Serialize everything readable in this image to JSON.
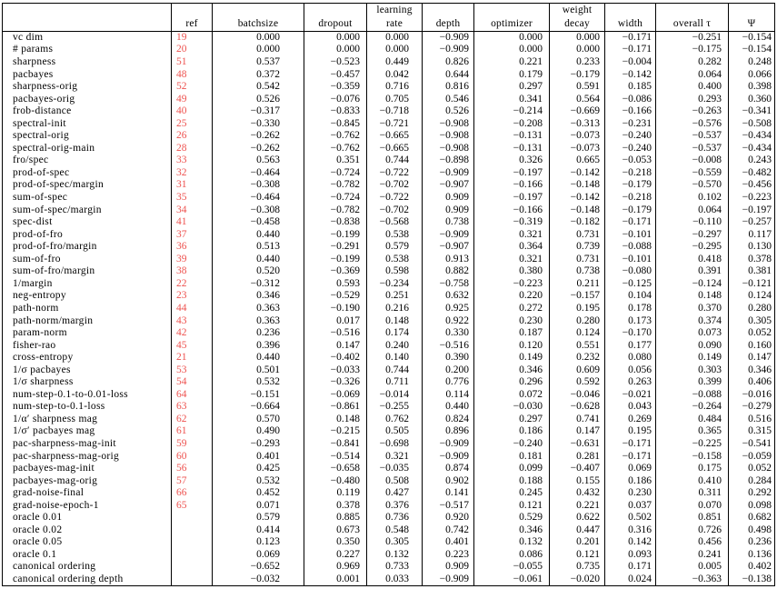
{
  "colors": {
    "ref_link": "#ee5350"
  },
  "table": {
    "header_top": [
      "",
      "",
      "",
      "",
      "learning",
      "",
      "",
      "weight",
      "",
      "",
      ""
    ],
    "header_bottom": [
      "",
      "ref",
      "batchsize",
      "dropout",
      "rate",
      "depth",
      "optimizer",
      "decay",
      "width",
      "overall τ",
      "Ψ"
    ],
    "rows": [
      {
        "label": "vc dim",
        "ref": "19",
        "values": [
          "0.000",
          "0.000",
          "0.000",
          "−0.909",
          "0.000",
          "0.000",
          "−0.171",
          "−0.251",
          "−0.154"
        ]
      },
      {
        "label": "# params",
        "ref": "20",
        "values": [
          "0.000",
          "0.000",
          "0.000",
          "−0.909",
          "0.000",
          "0.000",
          "−0.171",
          "−0.175",
          "−0.154"
        ]
      },
      {
        "label": "sharpness",
        "ref": "51",
        "values": [
          "0.537",
          "−0.523",
          "0.449",
          "0.826",
          "0.221",
          "0.233",
          "−0.004",
          "0.282",
          "0.248"
        ]
      },
      {
        "label": "pacbayes",
        "ref": "48",
        "values": [
          "0.372",
          "−0.457",
          "0.042",
          "0.644",
          "0.179",
          "−0.179",
          "−0.142",
          "0.064",
          "0.066"
        ]
      },
      {
        "label": "sharpness-orig",
        "ref": "52",
        "values": [
          "0.542",
          "−0.359",
          "0.716",
          "0.816",
          "0.297",
          "0.591",
          "0.185",
          "0.400",
          "0.398"
        ]
      },
      {
        "label": "pacbayes-orig",
        "ref": "49",
        "values": [
          "0.526",
          "−0.076",
          "0.705",
          "0.546",
          "0.341",
          "0.564",
          "−0.086",
          "0.293",
          "0.360"
        ]
      },
      {
        "label": "frob-distance",
        "ref": "40",
        "values": [
          "−0.317",
          "−0.833",
          "−0.718",
          "0.526",
          "−0.214",
          "−0.669",
          "−0.166",
          "−0.263",
          "−0.341"
        ]
      },
      {
        "label": "spectral-init",
        "ref": "25",
        "values": [
          "−0.330",
          "−0.845",
          "−0.721",
          "−0.908",
          "−0.208",
          "−0.313",
          "−0.231",
          "−0.576",
          "−0.508"
        ]
      },
      {
        "label": "spectral-orig",
        "ref": "26",
        "values": [
          "−0.262",
          "−0.762",
          "−0.665",
          "−0.908",
          "−0.131",
          "−0.073",
          "−0.240",
          "−0.537",
          "−0.434"
        ]
      },
      {
        "label": "spectral-orig-main",
        "ref": "28",
        "values": [
          "−0.262",
          "−0.762",
          "−0.665",
          "−0.908",
          "−0.131",
          "−0.073",
          "−0.240",
          "−0.537",
          "−0.434"
        ]
      },
      {
        "label": "fro/spec",
        "ref": "33",
        "values": [
          "0.563",
          "0.351",
          "0.744",
          "−0.898",
          "0.326",
          "0.665",
          "−0.053",
          "−0.008",
          "0.243"
        ]
      },
      {
        "label": "prod-of-spec",
        "ref": "32",
        "values": [
          "−0.464",
          "−0.724",
          "−0.722",
          "−0.909",
          "−0.197",
          "−0.142",
          "−0.218",
          "−0.559",
          "−0.482"
        ]
      },
      {
        "label": "prod-of-spec/margin",
        "ref": "31",
        "values": [
          "−0.308",
          "−0.782",
          "−0.702",
          "−0.907",
          "−0.166",
          "−0.148",
          "−0.179",
          "−0.570",
          "−0.456"
        ]
      },
      {
        "label": "sum-of-spec",
        "ref": "35",
        "values": [
          "−0.464",
          "−0.724",
          "−0.722",
          "0.909",
          "−0.197",
          "−0.142",
          "−0.218",
          "0.102",
          "−0.223"
        ]
      },
      {
        "label": "sum-of-spec/margin",
        "ref": "34",
        "values": [
          "−0.308",
          "−0.782",
          "−0.702",
          "0.909",
          "−0.166",
          "−0.148",
          "−0.179",
          "0.064",
          "−0.197"
        ]
      },
      {
        "label": "spec-dist",
        "ref": "41",
        "values": [
          "−0.458",
          "−0.838",
          "−0.568",
          "0.738",
          "−0.319",
          "−0.182",
          "−0.171",
          "−0.110",
          "−0.257"
        ]
      },
      {
        "label": "prod-of-fro",
        "ref": "37",
        "values": [
          "0.440",
          "−0.199",
          "0.538",
          "−0.909",
          "0.321",
          "0.731",
          "−0.101",
          "−0.297",
          "0.117"
        ]
      },
      {
        "label": "prod-of-fro/margin",
        "ref": "36",
        "values": [
          "0.513",
          "−0.291",
          "0.579",
          "−0.907",
          "0.364",
          "0.739",
          "−0.088",
          "−0.295",
          "0.130"
        ]
      },
      {
        "label": "sum-of-fro",
        "ref": "39",
        "values": [
          "0.440",
          "−0.199",
          "0.538",
          "0.913",
          "0.321",
          "0.731",
          "−0.101",
          "0.418",
          "0.378"
        ]
      },
      {
        "label": "sum-of-fro/margin",
        "ref": "38",
        "values": [
          "0.520",
          "−0.369",
          "0.598",
          "0.882",
          "0.380",
          "0.738",
          "−0.080",
          "0.391",
          "0.381"
        ]
      },
      {
        "label": "1/margin",
        "ref": "22",
        "values": [
          "−0.312",
          "0.593",
          "−0.234",
          "−0.758",
          "−0.223",
          "0.211",
          "−0.125",
          "−0.124",
          "−0.121"
        ]
      },
      {
        "label": "neg-entropy",
        "ref": "23",
        "values": [
          "0.346",
          "−0.529",
          "0.251",
          "0.632",
          "0.220",
          "−0.157",
          "0.104",
          "0.148",
          "0.124"
        ]
      },
      {
        "label": "path-norm",
        "ref": "44",
        "values": [
          "0.363",
          "−0.190",
          "0.216",
          "0.925",
          "0.272",
          "0.195",
          "0.178",
          "0.370",
          "0.280"
        ]
      },
      {
        "label": "path-norm/margin",
        "ref": "43",
        "values": [
          "0.363",
          "0.017",
          "0.148",
          "0.922",
          "0.230",
          "0.280",
          "0.173",
          "0.374",
          "0.305"
        ]
      },
      {
        "label": "param-norm",
        "ref": "42",
        "values": [
          "0.236",
          "−0.516",
          "0.174",
          "0.330",
          "0.187",
          "0.124",
          "−0.170",
          "0.073",
          "0.052"
        ]
      },
      {
        "label": "fisher-rao",
        "ref": "45",
        "values": [
          "0.396",
          "0.147",
          "0.240",
          "−0.516",
          "0.120",
          "0.551",
          "0.177",
          "0.090",
          "0.160"
        ]
      },
      {
        "label": "cross-entropy",
        "ref": "21",
        "values": [
          "0.440",
          "−0.402",
          "0.140",
          "0.390",
          "0.149",
          "0.232",
          "0.080",
          "0.149",
          "0.147"
        ]
      },
      {
        "label": "1/σ pacbayes",
        "ref": "53",
        "values": [
          "0.501",
          "−0.033",
          "0.744",
          "0.200",
          "0.346",
          "0.609",
          "0.056",
          "0.303",
          "0.346"
        ]
      },
      {
        "label": "1/σ sharpness",
        "ref": "54",
        "values": [
          "0.532",
          "−0.326",
          "0.711",
          "0.776",
          "0.296",
          "0.592",
          "0.263",
          "0.399",
          "0.406"
        ]
      },
      {
        "label": "num-step-0.1-to-0.01-loss",
        "ref": "64",
        "values": [
          "−0.151",
          "−0.069",
          "−0.014",
          "0.114",
          "0.072",
          "−0.046",
          "−0.021",
          "−0.088",
          "−0.016"
        ]
      },
      {
        "label": "num-step-to-0.1-loss",
        "ref": "63",
        "values": [
          "−0.664",
          "−0.861",
          "−0.255",
          "0.440",
          "−0.030",
          "−0.628",
          "0.043",
          "−0.264",
          "−0.279"
        ]
      },
      {
        "label": "1/α′ sharpness mag",
        "ref": "62",
        "values": [
          "0.570",
          "0.148",
          "0.762",
          "0.824",
          "0.297",
          "0.741",
          "0.269",
          "0.484",
          "0.516"
        ]
      },
      {
        "label": "1/σ′ pacbayes mag",
        "ref": "61",
        "values": [
          "0.490",
          "−0.215",
          "0.505",
          "0.896",
          "0.186",
          "0.147",
          "0.195",
          "0.365",
          "0.315"
        ]
      },
      {
        "label": "pac-sharpness-mag-init",
        "ref": "59",
        "values": [
          "−0.293",
          "−0.841",
          "−0.698",
          "−0.909",
          "−0.240",
          "−0.631",
          "−0.171",
          "−0.225",
          "−0.541"
        ]
      },
      {
        "label": "pac-sharpness-mag-orig",
        "ref": "60",
        "values": [
          "0.401",
          "−0.514",
          "0.321",
          "−0.909",
          "0.181",
          "0.281",
          "−0.171",
          "−0.158",
          "−0.059"
        ]
      },
      {
        "label": "pacbayes-mag-init",
        "ref": "56",
        "values": [
          "0.425",
          "−0.658",
          "−0.035",
          "0.874",
          "0.099",
          "−0.407",
          "0.069",
          "0.175",
          "0.052"
        ]
      },
      {
        "label": "pacbayes-mag-orig",
        "ref": "57",
        "values": [
          "0.532",
          "−0.480",
          "0.508",
          "0.902",
          "0.188",
          "0.155",
          "0.186",
          "0.410",
          "0.284"
        ]
      },
      {
        "label": "grad-noise-final",
        "ref": "66",
        "values": [
          "0.452",
          "0.119",
          "0.427",
          "0.141",
          "0.245",
          "0.432",
          "0.230",
          "0.311",
          "0.292"
        ]
      },
      {
        "label": "grad-noise-epoch-1",
        "ref": "65",
        "values": [
          "0.071",
          "0.378",
          "0.376",
          "−0.517",
          "0.121",
          "0.221",
          "0.037",
          "0.070",
          "0.098"
        ]
      },
      {
        "label": "oracle 0.01",
        "ref": "",
        "values": [
          "0.579",
          "0.885",
          "0.736",
          "0.920",
          "0.529",
          "0.622",
          "0.502",
          "0.851",
          "0.682"
        ]
      },
      {
        "label": "oracle 0.02",
        "ref": "",
        "values": [
          "0.414",
          "0.673",
          "0.548",
          "0.742",
          "0.346",
          "0.447",
          "0.316",
          "0.726",
          "0.498"
        ]
      },
      {
        "label": "oracle 0.05",
        "ref": "",
        "values": [
          "0.123",
          "0.350",
          "0.305",
          "0.401",
          "0.132",
          "0.201",
          "0.142",
          "0.456",
          "0.236"
        ]
      },
      {
        "label": "oracle 0.1",
        "ref": "",
        "values": [
          "0.069",
          "0.227",
          "0.132",
          "0.223",
          "0.086",
          "0.121",
          "0.093",
          "0.241",
          "0.136"
        ]
      },
      {
        "label": "canonical ordering",
        "ref": "",
        "values": [
          "−0.652",
          "0.969",
          "0.733",
          "0.909",
          "−0.055",
          "0.735",
          "0.171",
          "0.005",
          "0.402"
        ]
      },
      {
        "label": "canonical ordering depth",
        "ref": "",
        "values": [
          "−0.032",
          "0.001",
          "0.033",
          "−0.909",
          "−0.061",
          "−0.020",
          "0.024",
          "−0.363",
          "−0.138"
        ]
      }
    ]
  }
}
